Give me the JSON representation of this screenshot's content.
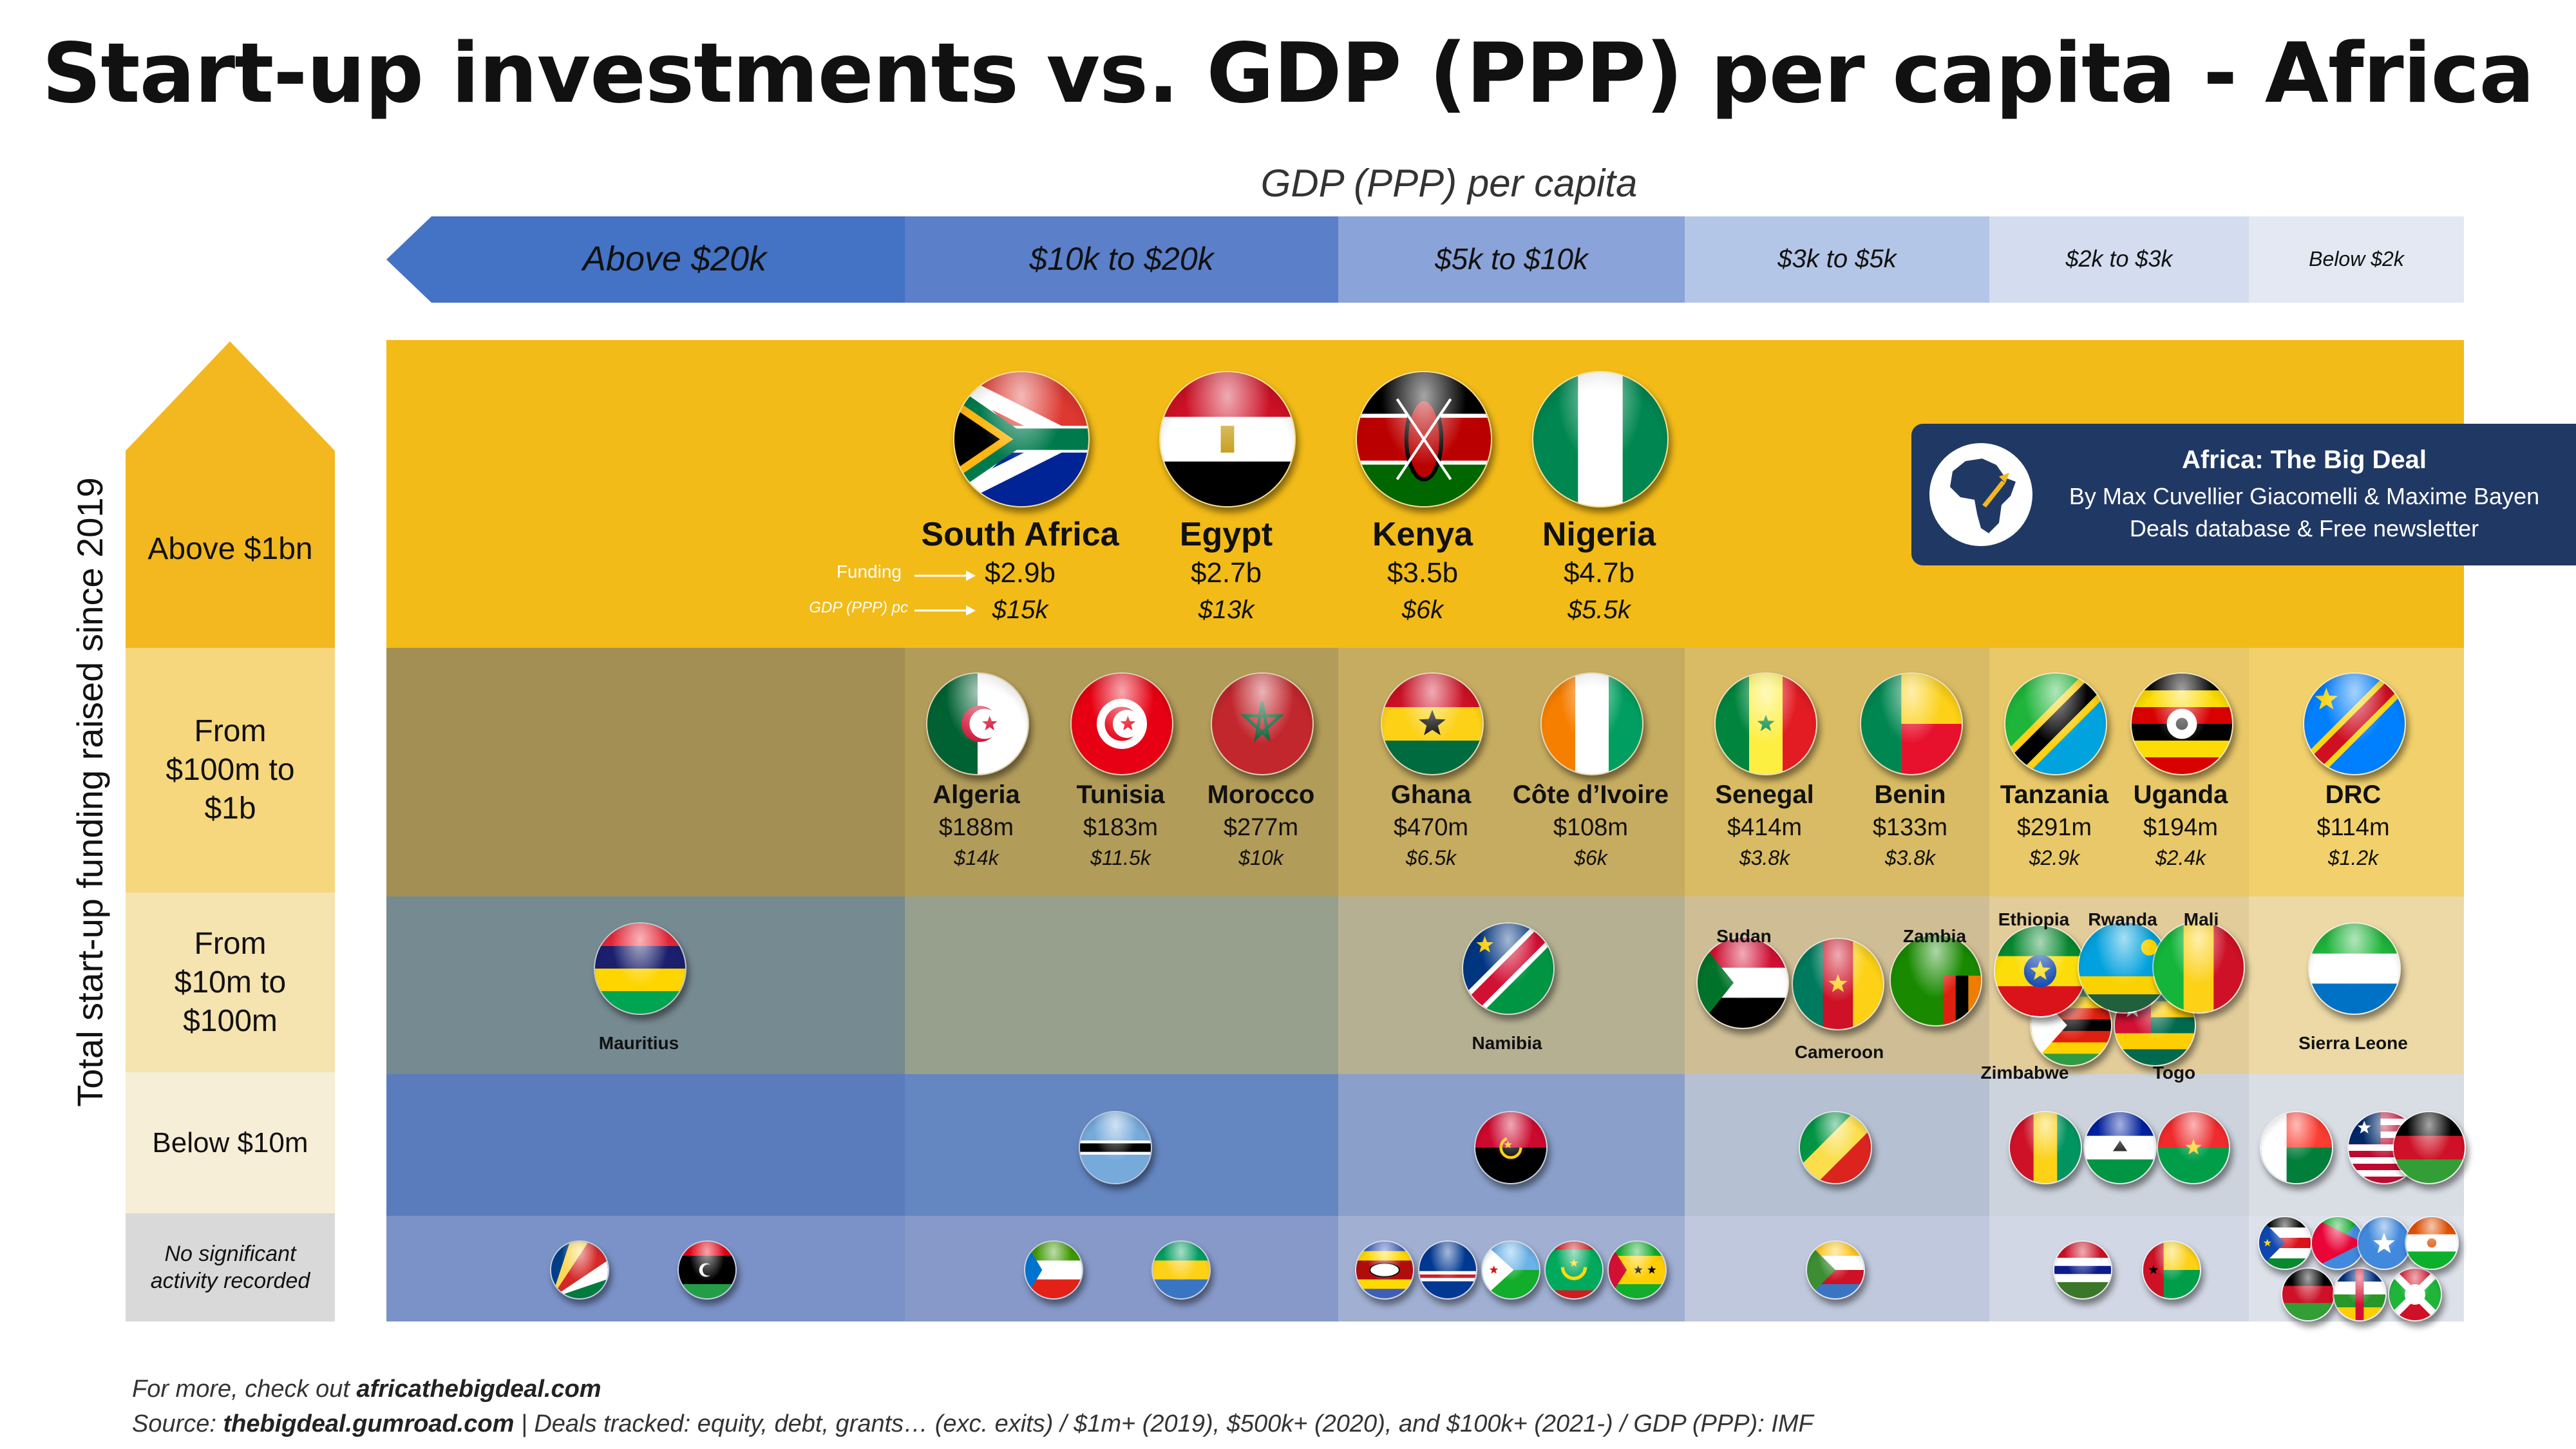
{
  "title": "Start-up investments vs. GDP (PPP) per capita - Africa",
  "gdp_axis_title": "GDP (PPP) per capita",
  "y_axis_title": "Total start-up funding raised since 2019",
  "columns": [
    "Above $20k",
    "$10k to $20k",
    "$5k to $10k",
    "$3k to $5k",
    "$2k to $3k",
    "Below $2k"
  ],
  "rows": [
    "Above $1bn",
    "From $100m to $1b",
    "From $10m to $100m",
    "Below $10m",
    "No significant activity recorded"
  ],
  "legend": {
    "funding": "Funding",
    "gdp": "GDP (PPP) pc"
  },
  "brand": {
    "title": "Africa: The Big Deal",
    "line1": "By Max Cuvellier Giacomelli & Maxime Bayen",
    "line2": "Deals database & Free newsletter"
  },
  "colors": {
    "col_above20k": "#4472c4",
    "col_10_20": "#5b7fc9",
    "col_5_10": "#8aa3d8",
    "col_3_5": "#b4c6e7",
    "col_2_3": "#d3ddef",
    "col_below2": "#e3e8f2",
    "row_1bn": "#f3b81f",
    "row_100m": "#f7d77e",
    "row_10m": "#f5e3b0",
    "row_10m_lt": "#f7eed7",
    "row_none": "#d9d9d9"
  },
  "chart_data": {
    "type": "table",
    "x_categories": [
      "Above $20k",
      "$10k to $20k",
      "$5k to $10k",
      "$3k to $5k",
      "$2k to $3k",
      "Below $2k"
    ],
    "y_categories": [
      "Above $1bn",
      "From $100m to $1b",
      "From $10m to $100m",
      "Below $10m",
      "No significant activity recorded"
    ],
    "countries": [
      {
        "name": "South Africa",
        "funding": "$2.9b",
        "gdp": "$15k",
        "tier": "Above $1bn",
        "gdp_band": "$10k to $20k"
      },
      {
        "name": "Egypt",
        "funding": "$2.7b",
        "gdp": "$13k",
        "tier": "Above $1bn",
        "gdp_band": "$10k to $20k"
      },
      {
        "name": "Kenya",
        "funding": "$3.5b",
        "gdp": "$6k",
        "tier": "Above $1bn",
        "gdp_band": "$5k to $10k"
      },
      {
        "name": "Nigeria",
        "funding": "$4.7b",
        "gdp": "$5.5k",
        "tier": "Above $1bn",
        "gdp_band": "$5k to $10k"
      },
      {
        "name": "Algeria",
        "funding": "$188m",
        "gdp": "$14k",
        "tier": "From $100m to $1b",
        "gdp_band": "$10k to $20k"
      },
      {
        "name": "Tunisia",
        "funding": "$183m",
        "gdp": "$11.5k",
        "tier": "From $100m to $1b",
        "gdp_band": "$10k to $20k"
      },
      {
        "name": "Morocco",
        "funding": "$277m",
        "gdp": "$10k",
        "tier": "From $100m to $1b",
        "gdp_band": "$10k to $20k"
      },
      {
        "name": "Ghana",
        "funding": "$470m",
        "gdp": "$6.5k",
        "tier": "From $100m to $1b",
        "gdp_band": "$5k to $10k"
      },
      {
        "name": "Côte d’Ivoire",
        "funding": "$108m",
        "gdp": "$6k",
        "tier": "From $100m to $1b",
        "gdp_band": "$5k to $10k"
      },
      {
        "name": "Senegal",
        "funding": "$414m",
        "gdp": "$3.8k",
        "tier": "From $100m to $1b",
        "gdp_band": "$3k to $5k"
      },
      {
        "name": "Benin",
        "funding": "$133m",
        "gdp": "$3.8k",
        "tier": "From $100m to $1b",
        "gdp_band": "$3k to $5k"
      },
      {
        "name": "Tanzania",
        "funding": "$291m",
        "gdp": "$2.9k",
        "tier": "From $100m to $1b",
        "gdp_band": "$2k to $3k"
      },
      {
        "name": "Uganda",
        "funding": "$194m",
        "gdp": "$2.4k",
        "tier": "From $100m to $1b",
        "gdp_band": "$2k to $3k"
      },
      {
        "name": "DRC",
        "funding": "$114m",
        "gdp": "$1.2k",
        "tier": "From $100m to $1b",
        "gdp_band": "Below $2k"
      },
      {
        "name": "Mauritius",
        "tier": "From $10m to $100m",
        "gdp_band": "Above $20k"
      },
      {
        "name": "Namibia",
        "tier": "From $10m to $100m",
        "gdp_band": "$5k to $10k"
      },
      {
        "name": "Sudan",
        "tier": "From $10m to $100m",
        "gdp_band": "$3k to $5k"
      },
      {
        "name": "Cameroon",
        "tier": "From $10m to $100m",
        "gdp_band": "$3k to $5k"
      },
      {
        "name": "Zambia",
        "tier": "From $10m to $100m",
        "gdp_band": "$3k to $5k"
      },
      {
        "name": "Ethiopia",
        "tier": "From $10m to $100m",
        "gdp_band": "$2k to $3k"
      },
      {
        "name": "Rwanda",
        "tier": "From $10m to $100m",
        "gdp_band": "$2k to $3k"
      },
      {
        "name": "Mali",
        "tier": "From $10m to $100m",
        "gdp_band": "$2k to $3k"
      },
      {
        "name": "Zimbabwe",
        "tier": "From $10m to $100m",
        "gdp_band": "$2k to $3k"
      },
      {
        "name": "Togo",
        "tier": "From $10m to $100m",
        "gdp_band": "$2k to $3k"
      },
      {
        "name": "Sierra Leone",
        "tier": "From $10m to $100m",
        "gdp_band": "Below $2k"
      }
    ]
  },
  "footer": {
    "line1_prefix": "For more, check out ",
    "line1_link": "africathebigdeal.com",
    "line2_prefix": "Source: ",
    "line2_link": "thebigdeal.gumroad.com",
    "line2_rest": " | Deals tracked: equity, debt, grants… (exc. exits) / $1m+ (2019), $500k+ (2020), and $100k+ (2021-) / GDP (PPP): IMF"
  }
}
